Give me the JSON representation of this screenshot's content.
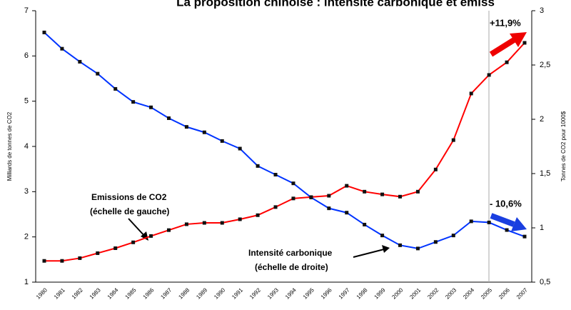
{
  "chart_data": {
    "type": "line",
    "title": "La proposition chinoise : intensité carbonique et émiss",
    "y_label": "Milliards de tonnes de CO2",
    "y2_label": "Tonnes de CO2 pour 1000$",
    "categories": [
      "1980",
      "1981",
      "1982",
      "1983",
      "1984",
      "1985",
      "1986",
      "1987",
      "1988",
      "1989",
      "1990",
      "1991",
      "1992",
      "1993",
      "1994",
      "1995",
      "1996",
      "1997",
      "1998",
      "1999",
      "2000",
      "2001",
      "2002",
      "2003",
      "2004",
      "2005",
      "2006",
      "2007"
    ],
    "series": [
      {
        "name": "Emissions de CO2",
        "color": "#ff0000",
        "axis": "y",
        "values": [
          1.47,
          1.47,
          1.53,
          1.64,
          1.75,
          1.88,
          2.02,
          2.15,
          2.28,
          2.31,
          2.31,
          2.39,
          2.48,
          2.66,
          2.85,
          2.88,
          2.91,
          3.13,
          3.0,
          2.94,
          2.89,
          3.0,
          3.49,
          4.14,
          5.17,
          5.58,
          5.86,
          6.29
        ]
      },
      {
        "name": "Intensité carbonique",
        "color": "#0033ff",
        "axis": "y2",
        "values": [
          2.8,
          2.65,
          2.53,
          2.42,
          2.28,
          2.16,
          2.11,
          2.01,
          1.93,
          1.88,
          1.8,
          1.73,
          1.57,
          1.49,
          1.41,
          1.28,
          1.18,
          1.14,
          1.03,
          0.93,
          0.84,
          0.81,
          0.87,
          0.93,
          1.06,
          1.05,
          0.98,
          0.92
        ]
      }
    ],
    "ylim": [
      1,
      7
    ],
    "yticks": [
      1,
      2,
      3,
      4,
      5,
      6,
      7
    ],
    "y2lim": [
      0.5,
      3
    ],
    "y2ticks": [
      {
        "value": 0.5,
        "label": "0,5"
      },
      1,
      {
        "value": 1.5,
        "label": "1,5"
      },
      2,
      {
        "value": 2.5,
        "label": "2,5"
      },
      3
    ],
    "annotations": [
      "(échelle de gauche)",
      "(échelle de droite)",
      "+11,9%",
      "- 10,6%"
    ]
  }
}
